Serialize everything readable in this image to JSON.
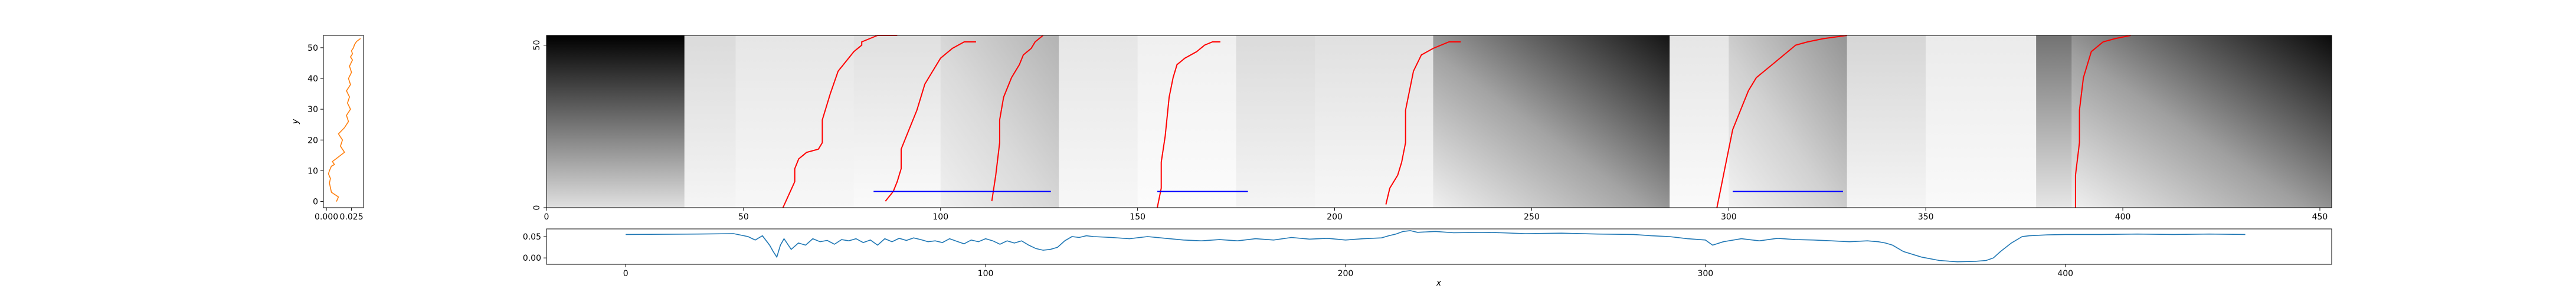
{
  "figure": {
    "background": "#ffffff"
  },
  "chart_data": [
    {
      "id": "side-profile",
      "type": "line",
      "xlabel": "",
      "ylabel": "y",
      "xlim": [
        -0.003,
        0.037
      ],
      "ylim": [
        -2,
        54
      ],
      "xticks": [
        0.0,
        0.025
      ],
      "xtick_labels": [
        "0.000",
        "0.025"
      ],
      "yticks": [
        0,
        10,
        20,
        30,
        40,
        50
      ],
      "ytick_labels": [
        "0",
        "10",
        "20",
        "30",
        "40",
        "50"
      ],
      "color": "#ff7f0e",
      "series": [
        {
          "x": [
            0.01,
            0.012,
            0.005,
            0.004,
            0.003,
            0.004,
            0.002,
            0.003,
            0.004,
            0.005,
            0.008,
            0.006,
            0.01,
            0.018,
            0.014,
            0.016,
            0.012,
            0.018,
            0.022,
            0.02,
            0.024,
            0.021,
            0.023,
            0.02,
            0.024,
            0.022,
            0.025,
            0.023,
            0.026,
            0.024,
            0.026,
            0.025,
            0.027,
            0.028,
            0.03,
            0.034
          ],
          "y": [
            0,
            1.5,
            3,
            4.5,
            6,
            7.5,
            9,
            10,
            10.8,
            11.5,
            12,
            13,
            14,
            16,
            18,
            20,
            22,
            24,
            26,
            28,
            30,
            32,
            34,
            36,
            38,
            40,
            42,
            44,
            46,
            47,
            48,
            49,
            50,
            51,
            52,
            53
          ]
        }
      ]
    },
    {
      "id": "heatmap",
      "type": "heatmap",
      "colormap": "gray",
      "xlim": [
        0,
        453
      ],
      "ylim": [
        0,
        53
      ],
      "xticks": [
        0,
        50,
        100,
        150,
        200,
        250,
        300,
        350,
        400,
        450
      ],
      "xtick_labels": [
        "0",
        "50",
        "100",
        "150",
        "200",
        "250",
        "300",
        "350",
        "400",
        "450"
      ],
      "yticks": [
        0,
        50
      ],
      "ytick_labels": [
        "0",
        "50"
      ],
      "segments": [
        {
          "x0": 0,
          "x1": 35,
          "pattern": "vertical",
          "dark": 1.0,
          "light": 0.12
        },
        {
          "x0": 35,
          "x1": 48,
          "pattern": "vertical",
          "dark": 0.14,
          "light": 0.04
        },
        {
          "x0": 48,
          "x1": 78,
          "pattern": "vertical",
          "dark": 0.1,
          "light": 0.03
        },
        {
          "x0": 78,
          "x1": 100,
          "pattern": "vertical",
          "dark": 0.12,
          "light": 0.02
        },
        {
          "x0": 100,
          "x1": 130,
          "pattern": "diagonal",
          "dark": 0.3,
          "light": 0.06
        },
        {
          "x0": 130,
          "x1": 150,
          "pattern": "vertical",
          "dark": 0.1,
          "light": 0.03
        },
        {
          "x0": 150,
          "x1": 175,
          "pattern": "vertical",
          "dark": 0.06,
          "light": 0.01
        },
        {
          "x0": 175,
          "x1": 195,
          "pattern": "vertical",
          "dark": 0.14,
          "light": 0.04
        },
        {
          "x0": 195,
          "x1": 225,
          "pattern": "vertical",
          "dark": 0.12,
          "light": 0.03
        },
        {
          "x0": 225,
          "x1": 285,
          "pattern": "diagonal",
          "dark": 0.92,
          "light": 0.06
        },
        {
          "x0": 285,
          "x1": 300,
          "pattern": "vertical",
          "dark": 0.1,
          "light": 0.02
        },
        {
          "x0": 300,
          "x1": 330,
          "pattern": "diagonal",
          "dark": 0.42,
          "light": 0.05
        },
        {
          "x0": 330,
          "x1": 350,
          "pattern": "vertical",
          "dark": 0.16,
          "light": 0.04
        },
        {
          "x0": 350,
          "x1": 378,
          "pattern": "vertical",
          "dark": 0.08,
          "light": 0.02
        },
        {
          "x0": 378,
          "x1": 387,
          "pattern": "vertical",
          "dark": 0.55,
          "light": 0.1
        },
        {
          "x0": 387,
          "x1": 453,
          "pattern": "diagonal",
          "dark": 0.96,
          "light": 0.06
        }
      ],
      "red_paths": {
        "color": "#ff0000",
        "series": [
          {
            "x": [
              60,
              63,
              63,
              64,
              66,
              69,
              70,
              70,
              72,
              74,
              78,
              80,
              80,
              82,
              84,
              89
            ],
            "y": [
              0,
              8,
              12,
              15,
              17,
              18,
              20,
              27,
              35,
              42,
              48,
              50,
              51,
              52,
              53,
              53
            ]
          },
          {
            "x": [
              86,
              88,
              89,
              90,
              90,
              92,
              94,
              95,
              96,
              98,
              100,
              103,
              106,
              109
            ],
            "y": [
              2,
              5,
              8,
              12,
              18,
              24,
              30,
              34,
              38,
              42,
              46,
              49,
              51,
              51
            ]
          },
          {
            "x": [
              113,
              114,
              115,
              115,
              116,
              118,
              120,
              121,
              123,
              124,
              126
            ],
            "y": [
              2,
              10,
              20,
              27,
              34,
              40,
              44,
              47,
              49,
              51,
              53
            ]
          },
          {
            "x": [
              155,
              156,
              156,
              157,
              158,
              159,
              160,
              162,
              165,
              167,
              169,
              171
            ],
            "y": [
              0,
              6,
              14,
              22,
              34,
              40,
              44,
              46,
              48,
              50,
              51,
              51
            ]
          },
          {
            "x": [
              213,
              214,
              216,
              217,
              218,
              218,
              220,
              222,
              225,
              229,
              232
            ],
            "y": [
              1,
              6,
              10,
              14,
              20,
              30,
              42,
              47,
              49,
              51,
              51
            ]
          },
          {
            "x": [
              297,
              298,
              299,
              300,
              301,
              303,
              305,
              307,
              309,
              311,
              313,
              315,
              317,
              320,
              324,
              330
            ],
            "y": [
              0,
              6,
              12,
              18,
              24,
              30,
              36,
              40,
              42,
              44,
              46,
              48,
              50,
              51,
              52,
              53
            ]
          },
          {
            "x": [
              388,
              388,
              389,
              389,
              390,
              392,
              395,
              398,
              402
            ],
            "y": [
              0,
              10,
              20,
              30,
              40,
              48,
              51,
              52,
              53
            ]
          }
        ]
      },
      "blue_segments": {
        "color": "#0000ff",
        "series": [
          {
            "x": [
              83,
              128
            ],
            "y": [
              5,
              5
            ]
          },
          {
            "x": [
              155,
              178
            ],
            "y": [
              5,
              5
            ]
          },
          {
            "x": [
              301,
              329
            ],
            "y": [
              5,
              5
            ]
          }
        ]
      }
    },
    {
      "id": "bottom-profile",
      "type": "line",
      "xlabel": "x",
      "ylabel": "",
      "xlim": [
        -22,
        474
      ],
      "ylim": [
        -0.015,
        0.068
      ],
      "xticks": [
        0,
        100,
        200,
        300,
        400
      ],
      "xtick_labels": [
        "0",
        "100",
        "200",
        "300",
        "400"
      ],
      "yticks": [
        0.0,
        0.05
      ],
      "ytick_labels": [
        "0.00",
        "0.05"
      ],
      "color": "#1f77b4",
      "series": [
        {
          "x": [
            0,
            20,
            30,
            34,
            36,
            38,
            40,
            41,
            42,
            43,
            44,
            46,
            48,
            50,
            52,
            54,
            56,
            58,
            60,
            62,
            64,
            66,
            68,
            70,
            72,
            74,
            76,
            78,
            80,
            82,
            84,
            86,
            88,
            90,
            92,
            94,
            96,
            98,
            100,
            102,
            104,
            106,
            108,
            110,
            112,
            114,
            116,
            118,
            120,
            122,
            124,
            126,
            128,
            130,
            135,
            140,
            145,
            150,
            155,
            160,
            165,
            170,
            175,
            180,
            185,
            190,
            195,
            200,
            205,
            210,
            212,
            214,
            216,
            218,
            220,
            225,
            230,
            240,
            250,
            260,
            270,
            280,
            285,
            290,
            295,
            300,
            302,
            305,
            310,
            315,
            320,
            325,
            330,
            335,
            340,
            345,
            348,
            350,
            352,
            355,
            360,
            365,
            370,
            375,
            378,
            380,
            382,
            385,
            388,
            390,
            395,
            400,
            410,
            420,
            430,
            440,
            450
          ],
          "y": [
            0.055,
            0.056,
            0.057,
            0.05,
            0.042,
            0.052,
            0.03,
            0.015,
            0.002,
            0.03,
            0.045,
            0.02,
            0.035,
            0.03,
            0.045,
            0.038,
            0.041,
            0.032,
            0.043,
            0.04,
            0.045,
            0.036,
            0.042,
            0.03,
            0.045,
            0.038,
            0.046,
            0.041,
            0.047,
            0.043,
            0.038,
            0.04,
            0.036,
            0.045,
            0.039,
            0.033,
            0.042,
            0.038,
            0.045,
            0.04,
            0.032,
            0.04,
            0.035,
            0.04,
            0.03,
            0.022,
            0.018,
            0.02,
            0.025,
            0.04,
            0.05,
            0.048,
            0.052,
            0.05,
            0.048,
            0.045,
            0.05,
            0.046,
            0.042,
            0.04,
            0.043,
            0.04,
            0.045,
            0.042,
            0.048,
            0.044,
            0.046,
            0.042,
            0.045,
            0.047,
            0.052,
            0.056,
            0.062,
            0.064,
            0.06,
            0.062,
            0.059,
            0.06,
            0.057,
            0.058,
            0.056,
            0.055,
            0.052,
            0.05,
            0.045,
            0.042,
            0.03,
            0.038,
            0.045,
            0.04,
            0.046,
            0.043,
            0.042,
            0.04,
            0.038,
            0.04,
            0.038,
            0.035,
            0.03,
            0.015,
            0.002,
            -0.006,
            -0.009,
            -0.008,
            -0.006,
            0.0,
            0.015,
            0.035,
            0.05,
            0.052,
            0.054,
            0.055,
            0.055,
            0.056,
            0.055,
            0.056,
            0.055
          ]
        }
      ]
    }
  ]
}
